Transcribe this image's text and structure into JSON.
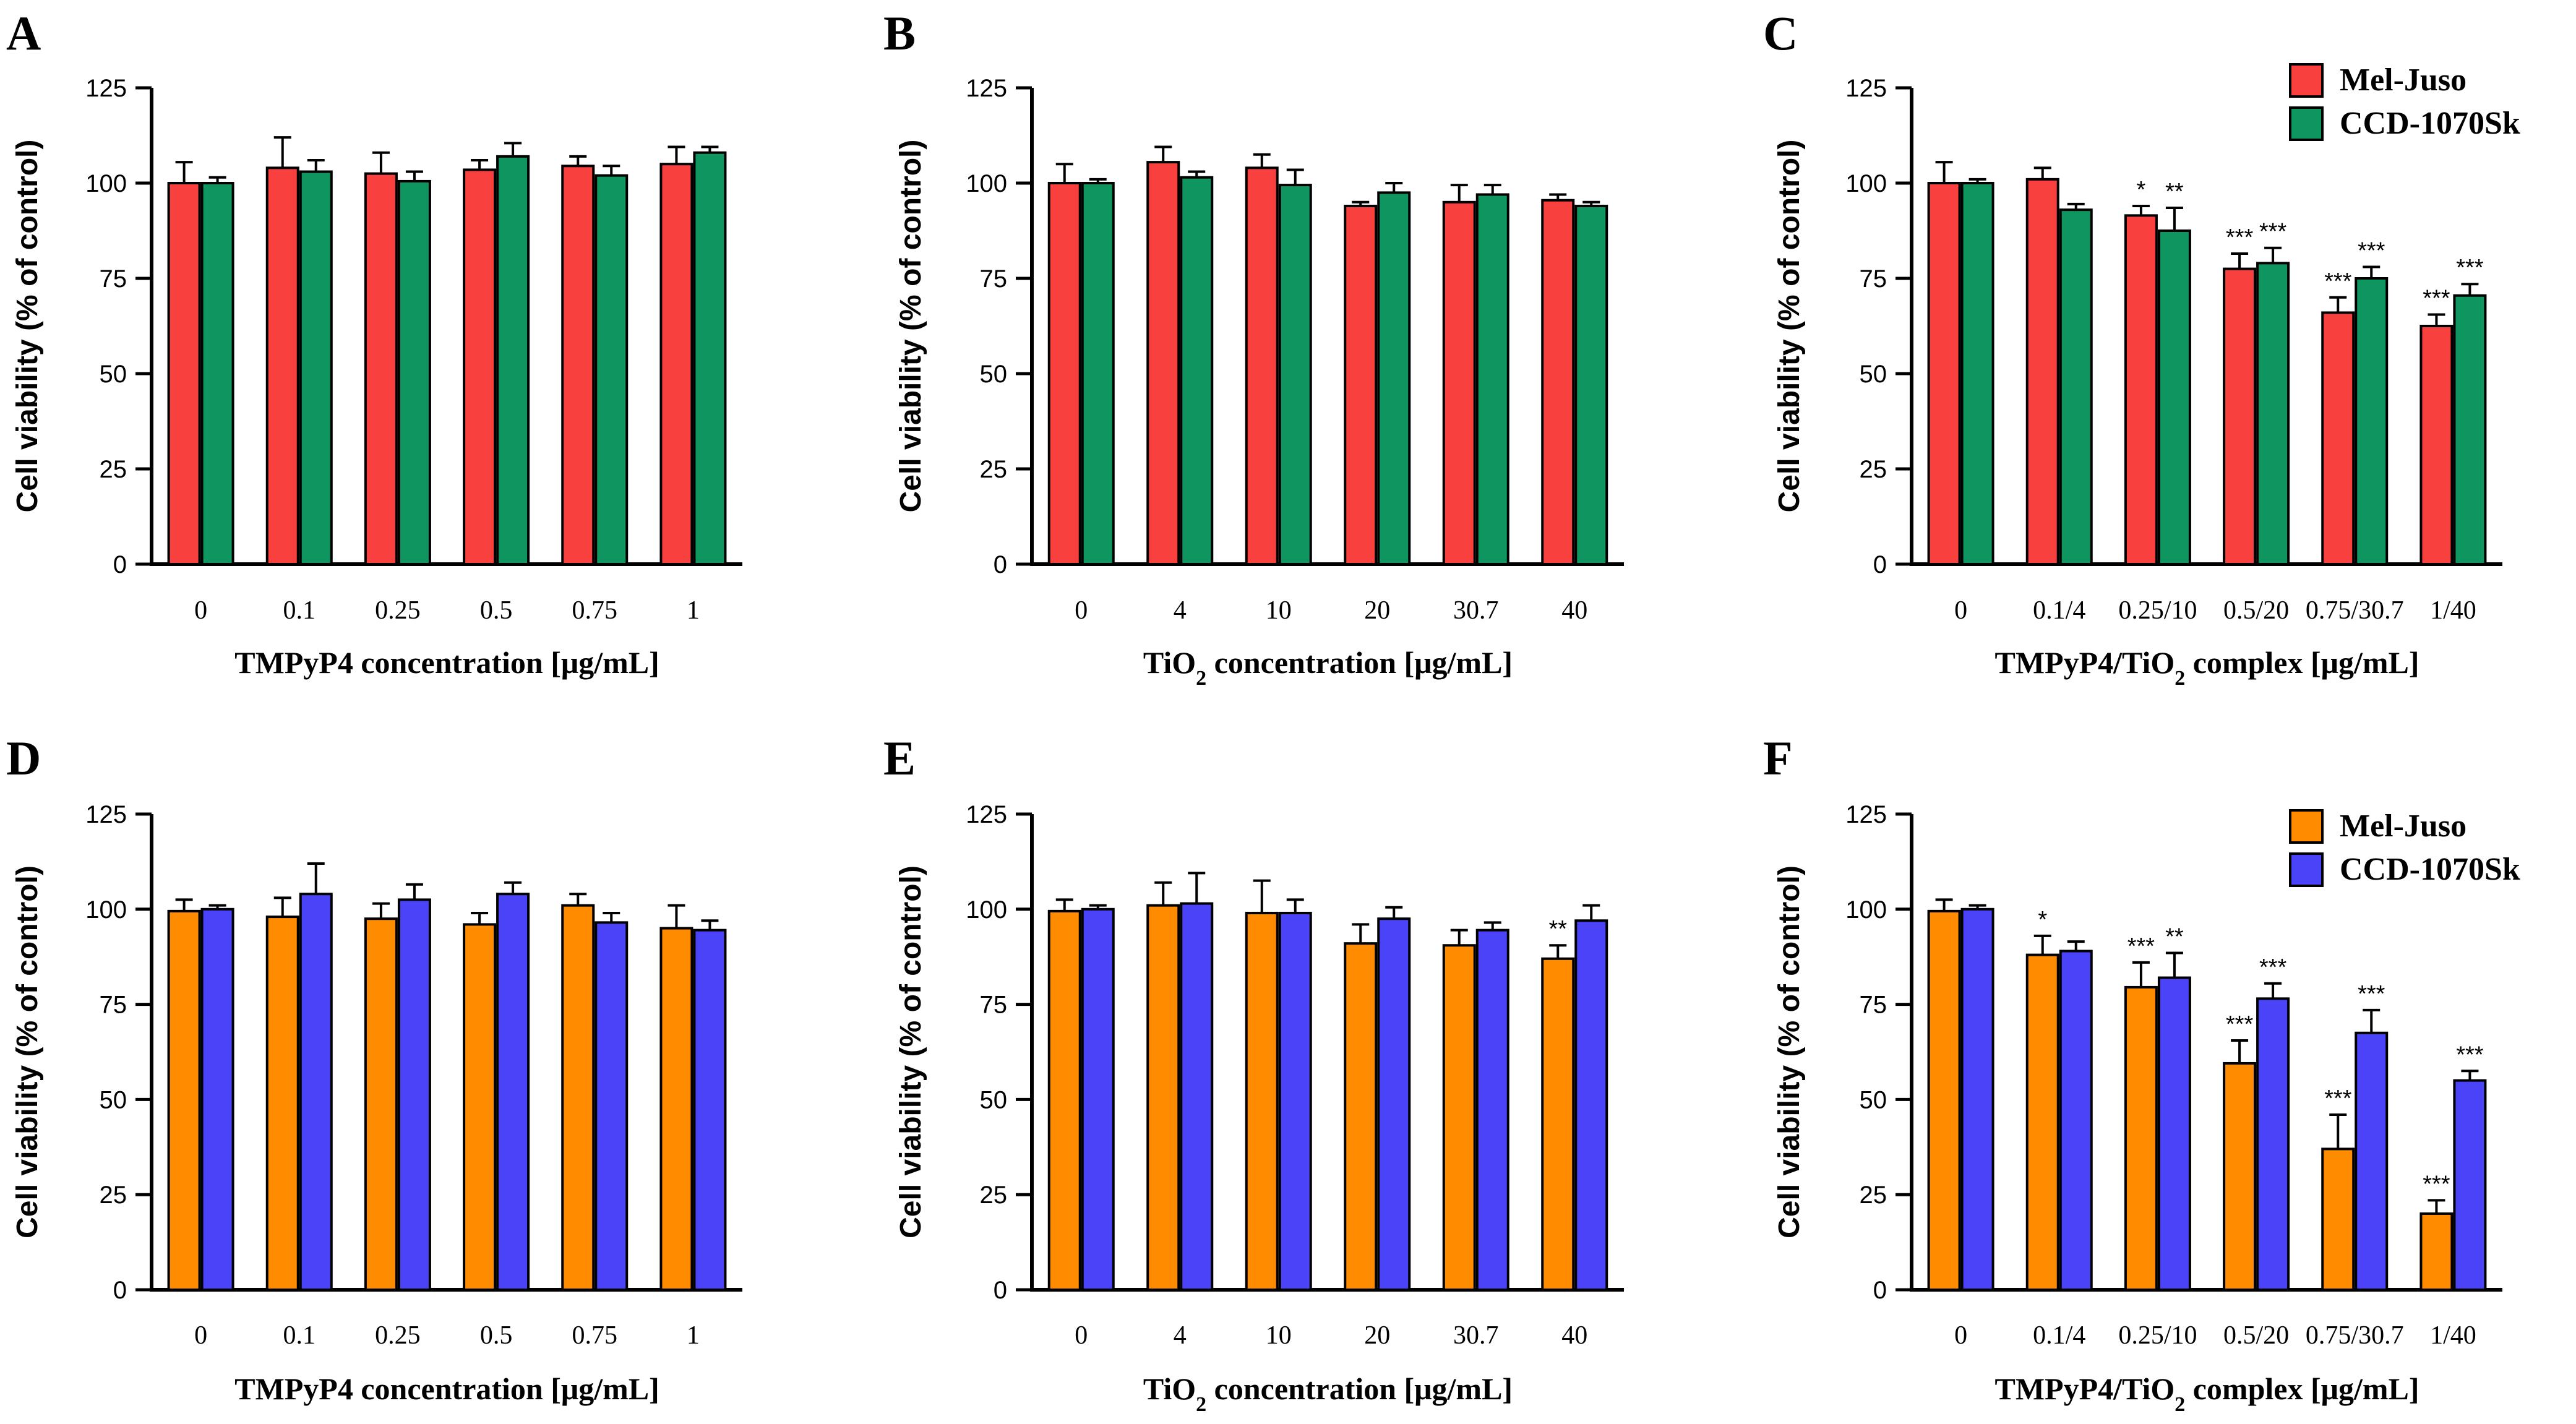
{
  "colors": {
    "red": "#f8403f",
    "green": "#0f9560",
    "orange": "#ff8c00",
    "blue": "#4b43f8",
    "axis": "#000000"
  },
  "legend_top": {
    "entries": [
      {
        "label": "Mel-Juso",
        "color": "#f8403f"
      },
      {
        "label": "CCD-1070Sk",
        "color": "#0f9560"
      }
    ]
  },
  "legend_bottom": {
    "entries": [
      {
        "label": "Mel-Juso",
        "color": "#ff8c00"
      },
      {
        "label": "CCD-1070Sk",
        "color": "#4b43f8"
      }
    ]
  },
  "chart_data": [
    {
      "panel": "A",
      "type": "bar",
      "ylabel": "Cell viability (% of control)",
      "xlabel": "TMPyP4 concentration [μg/mL]",
      "ylim": [
        0,
        125
      ],
      "yticks": [
        "0",
        "25",
        "50",
        "75",
        "100",
        "125"
      ],
      "categories": [
        "0",
        "0.1",
        "0.25",
        "0.5",
        "0.75",
        "1"
      ],
      "series": [
        {
          "name": "Mel-Juso",
          "color": "#f8403f",
          "values": [
            100,
            104,
            102.5,
            103.5,
            104.5,
            105
          ],
          "errors": [
            5.5,
            8,
            5.5,
            2.5,
            2.5,
            4.5
          ],
          "stars": [
            "",
            "",
            "",
            "",
            "",
            ""
          ]
        },
        {
          "name": "CCD-1070Sk",
          "color": "#0f9560",
          "values": [
            100,
            103,
            100.5,
            107,
            102,
            108
          ],
          "errors": [
            1.5,
            3,
            2.5,
            3.5,
            2.5,
            1.5
          ],
          "stars": [
            "",
            "",
            "",
            "",
            "",
            ""
          ]
        }
      ]
    },
    {
      "panel": "B",
      "type": "bar",
      "ylabel": "Cell viability (% of control)",
      "xlabel_pre": "TiO",
      "xlabel_sub": "2",
      "xlabel_post": " concentration [μg/mL]",
      "ylim": [
        0,
        125
      ],
      "yticks": [
        "0",
        "25",
        "50",
        "75",
        "100",
        "125"
      ],
      "categories": [
        "0",
        "4",
        "10",
        "20",
        "30.7",
        "40"
      ],
      "series": [
        {
          "name": "Mel-Juso",
          "color": "#f8403f",
          "values": [
            100,
            105.5,
            104,
            94,
            95,
            95.5
          ],
          "errors": [
            5,
            4,
            3.5,
            1,
            4.5,
            1.5
          ],
          "stars": [
            "",
            "",
            "",
            "",
            "",
            ""
          ]
        },
        {
          "name": "CCD-1070Sk",
          "color": "#0f9560",
          "values": [
            100,
            101.5,
            99.5,
            97.5,
            97,
            94
          ],
          "errors": [
            1,
            1.5,
            4,
            2.5,
            2.5,
            1
          ],
          "stars": [
            "",
            "",
            "",
            "",
            "",
            ""
          ]
        }
      ]
    },
    {
      "panel": "C",
      "type": "bar",
      "ylabel": "Cell viability (% of control)",
      "xlabel_pre": "TMPyP4/TiO",
      "xlabel_sub": "2",
      "xlabel_post": " complex [μg/mL]",
      "ylim": [
        0,
        125
      ],
      "yticks": [
        "0",
        "25",
        "50",
        "75",
        "100",
        "125"
      ],
      "categories": [
        "0",
        "0.1/4",
        "0.25/10",
        "0.5/20",
        "0.75/30.7",
        "1/40"
      ],
      "series": [
        {
          "name": "Mel-Juso",
          "color": "#f8403f",
          "values": [
            100,
            101,
            91.5,
            77.5,
            66,
            62.5
          ],
          "errors": [
            5.5,
            3,
            2.5,
            4,
            4,
            3
          ],
          "stars": [
            "",
            "",
            "*",
            "***",
            "***",
            "***"
          ]
        },
        {
          "name": "CCD-1070Sk",
          "color": "#0f9560",
          "values": [
            100,
            93,
            87.5,
            79,
            75,
            70.5
          ],
          "errors": [
            1,
            1.5,
            6,
            4,
            3,
            3
          ],
          "stars": [
            "",
            "",
            "**",
            "***",
            "***",
            "***"
          ]
        }
      ]
    },
    {
      "panel": "D",
      "type": "bar",
      "ylabel": "Cell viability (% of control)",
      "xlabel": "TMPyP4 concentration [μg/mL]",
      "ylim": [
        0,
        125
      ],
      "yticks": [
        "0",
        "25",
        "50",
        "75",
        "100",
        "125"
      ],
      "categories": [
        "0",
        "0.1",
        "0.25",
        "0.5",
        "0.75",
        "1"
      ],
      "series": [
        {
          "name": "Mel-Juso",
          "color": "#ff8c00",
          "values": [
            99.5,
            98,
            97.5,
            96,
            101,
            95
          ],
          "errors": [
            3,
            5,
            4,
            3,
            3,
            6
          ],
          "stars": [
            "",
            "",
            "",
            "",
            "",
            ""
          ]
        },
        {
          "name": "CCD-1070Sk",
          "color": "#4b43f8",
          "values": [
            100,
            104,
            102.5,
            104,
            96.5,
            94.5
          ],
          "errors": [
            1,
            8,
            4,
            3,
            2.5,
            2.5
          ],
          "stars": [
            "",
            "",
            "",
            "",
            "",
            ""
          ]
        }
      ]
    },
    {
      "panel": "E",
      "type": "bar",
      "ylabel": "Cell viability (% of control)",
      "xlabel_pre": "TiO",
      "xlabel_sub": "2",
      "xlabel_post": " concentration [μg/mL]",
      "ylim": [
        0,
        125
      ],
      "yticks": [
        "0",
        "25",
        "50",
        "75",
        "100",
        "125"
      ],
      "categories": [
        "0",
        "4",
        "10",
        "20",
        "30.7",
        "40"
      ],
      "series": [
        {
          "name": "Mel-Juso",
          "color": "#ff8c00",
          "values": [
            99.5,
            101,
            99,
            91,
            90.5,
            87
          ],
          "errors": [
            3,
            6,
            8.5,
            5,
            4,
            3.5
          ],
          "stars": [
            "",
            "",
            "",
            "",
            "",
            "**"
          ]
        },
        {
          "name": "CCD-1070Sk",
          "color": "#4b43f8",
          "values": [
            100,
            101.5,
            99,
            97.5,
            94.5,
            97
          ],
          "errors": [
            1,
            8,
            3.5,
            3,
            2,
            4
          ],
          "stars": [
            "",
            "",
            "",
            "",
            "",
            ""
          ]
        }
      ]
    },
    {
      "panel": "F",
      "type": "bar",
      "ylabel": "Cell viability (% of control)",
      "xlabel_pre": "TMPyP4/TiO",
      "xlabel_sub": "2",
      "xlabel_post": " complex [μg/mL]",
      "ylim": [
        0,
        125
      ],
      "yticks": [
        "0",
        "25",
        "50",
        "75",
        "100",
        "125"
      ],
      "categories": [
        "0",
        "0.1/4",
        "0.25/10",
        "0.5/20",
        "0.75/30.7",
        "1/40"
      ],
      "series": [
        {
          "name": "Mel-Juso",
          "color": "#ff8c00",
          "values": [
            99.5,
            88,
            79.5,
            59.5,
            37,
            20
          ],
          "errors": [
            3,
            5,
            6.5,
            6,
            9,
            3.5
          ],
          "stars": [
            "",
            "*",
            "***",
            "***",
            "***",
            "***"
          ]
        },
        {
          "name": "CCD-1070Sk",
          "color": "#4b43f8",
          "values": [
            100,
            89,
            82,
            76.5,
            67.5,
            55
          ],
          "errors": [
            1,
            2.5,
            6.5,
            4,
            6,
            2.5
          ],
          "stars": [
            "",
            "",
            "**",
            "***",
            "***",
            "***"
          ]
        }
      ]
    }
  ]
}
